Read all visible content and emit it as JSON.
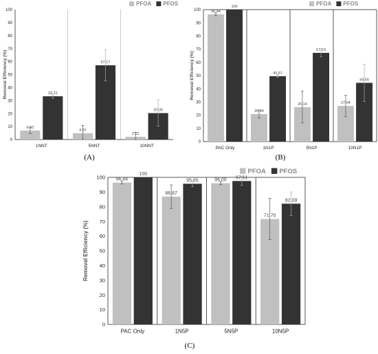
{
  "legend": {
    "pfoa": "PFOA",
    "pfos": "PFOS"
  },
  "colors": {
    "pfoa": "#c0c0c0",
    "pfos": "#333333",
    "axis": "#8a8a8a",
    "text": "#222222"
  },
  "chart_data": [
    {
      "id": "A",
      "panel_label": "(A)",
      "type": "bar",
      "categories": [
        "1NNT",
        "5NNT",
        "10NNT"
      ],
      "series": [
        {
          "name": "PFOA",
          "values": [
            6.93,
            4.87,
            2.12
          ],
          "errors": [
            2.5,
            6,
            3.5
          ]
        },
        {
          "name": "PFOS",
          "values": [
            33.31,
            57.17,
            20.35
          ],
          "errors": [
            1.5,
            12,
            10
          ]
        }
      ],
      "value_labels": {
        "PFOA": [
          "6.93",
          "4.87",
          "2.12"
        ],
        "PFOS": [
          "33.31",
          "57.17",
          "20.35"
        ]
      },
      "ylabel": "Removal Efficiency (%)",
      "ylim": [
        0,
        100
      ],
      "yticks": [
        "0",
        "10",
        "20",
        "30",
        "40",
        "50",
        "60",
        "70",
        "80",
        "90",
        "100"
      ],
      "legend_position": "top-right"
    },
    {
      "id": "B",
      "panel_label": "(B)",
      "type": "bar",
      "categories": [
        "PAC Only",
        "1N1P",
        "5N1P",
        "10N1P"
      ],
      "series": [
        {
          "name": "PFOA",
          "values": [
            96.44,
            20.84,
            26.14,
            27.04
          ],
          "errors": [
            1,
            3,
            12,
            8
          ]
        },
        {
          "name": "PFOS",
          "values": [
            100,
            49.57,
            67.23,
            44.55
          ],
          "errors": [
            0,
            1,
            3,
            14
          ]
        }
      ],
      "value_labels": {
        "PFOA": [
          "96.44",
          "20.84",
          "26.14",
          "27.04"
        ],
        "PFOS": [
          "100",
          "49.57",
          "67.23",
          "44.55"
        ]
      },
      "ylabel": "Removal Efficiency (%)",
      "ylim": [
        0,
        100
      ],
      "yticks": [
        "0",
        "10",
        "20",
        "30",
        "40",
        "50",
        "60",
        "70",
        "80",
        "90",
        "100"
      ],
      "legend_position": "top-right"
    },
    {
      "id": "C",
      "panel_label": "(C)",
      "type": "bar",
      "categories": [
        "PAC Only",
        "1N5P",
        "5N5P",
        "10N5P"
      ],
      "series": [
        {
          "name": "PFOA",
          "values": [
            96.44,
            86.87,
            96.0,
            71.7
          ],
          "errors": [
            1,
            8,
            1,
            14
          ]
        },
        {
          "name": "PFOS",
          "values": [
            100,
            95.65,
            97.51,
            82.09
          ],
          "errors": [
            0,
            2,
            3,
            8
          ]
        }
      ],
      "value_labels": {
        "PFOA": [
          "96.44",
          "86.87",
          "96.00",
          "71.70"
        ],
        "PFOS": [
          "100",
          "95.65",
          "97.51",
          "82.09"
        ]
      },
      "ylabel": "Removal Efficiency (%)",
      "ylim": [
        0,
        100
      ],
      "yticks": [
        "0",
        "10",
        "20",
        "30",
        "40",
        "50",
        "60",
        "70",
        "80",
        "90",
        "100"
      ],
      "legend_position": "top-right"
    }
  ]
}
